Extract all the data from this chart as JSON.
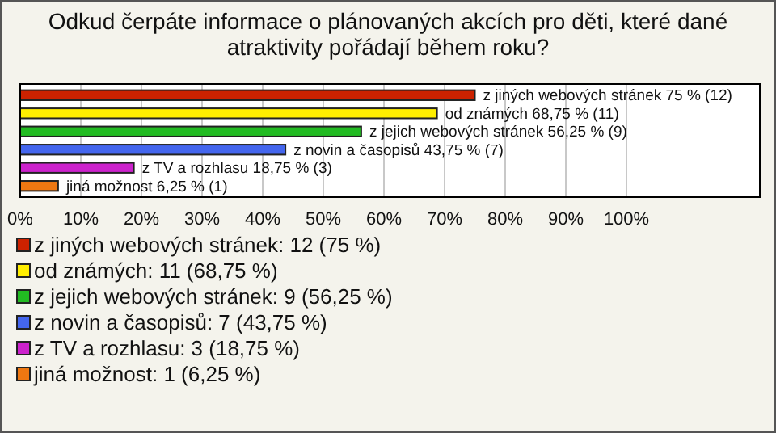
{
  "chart_data": {
    "type": "bar",
    "orientation": "horizontal",
    "title": "Odkud čerpáte informace o plánovaných akcích pro děti, které dané atraktivity pořádají během roku?",
    "categories": [
      null,
      null,
      null,
      null,
      null,
      null
    ],
    "series": [
      {
        "name": "z jiných webových stránek: 12 (75 %)",
        "color": "#cc2200",
        "values": [
          75,
          null,
          null,
          null,
          null,
          null
        ],
        "value_labels": [
          "z jiných webových stránek 75 % (12)",
          null,
          null,
          null,
          null,
          null
        ]
      },
      {
        "name": "od známých: 11 (68,75 %)",
        "color": "#ffee00",
        "values": [
          null,
          68.75,
          null,
          null,
          null,
          null
        ],
        "value_labels": [
          null,
          "od známých 68,75 % (11)",
          null,
          null,
          null,
          null
        ]
      },
      {
        "name": "z jejich webových stránek: 9 (56,25 %)",
        "color": "#22bb22",
        "values": [
          null,
          null,
          56.25,
          null,
          null,
          null
        ],
        "value_labels": [
          null,
          null,
          "z jejich webových stránek 56,25 % (9)",
          null,
          null,
          null
        ]
      },
      {
        "name": "z novin a časopisů: 7 (43,75 %)",
        "color": "#4466ee",
        "values": [
          null,
          null,
          null,
          43.75,
          null,
          null
        ],
        "value_labels": [
          null,
          null,
          null,
          "z novin a časopisů 43,75 % (7)",
          null,
          null
        ]
      },
      {
        "name": "z TV a rozhlasu: 3 (18,75 %)",
        "color": "#cc22cc",
        "values": [
          null,
          null,
          null,
          null,
          18.75,
          null
        ],
        "value_labels": [
          null,
          null,
          null,
          null,
          "z TV a rozhlasu 18,75 % (3)",
          null
        ]
      },
      {
        "name": "jiná možnost: 1 (6,25 %)",
        "color": "#ee7711",
        "values": [
          null,
          null,
          null,
          null,
          null,
          6.25
        ],
        "value_labels": [
          null,
          null,
          null,
          null,
          null,
          "jiná možnost 6,25 % (1)"
        ]
      }
    ],
    "xlim": [
      0,
      122
    ],
    "xticks": [
      {
        "value": 0,
        "label": "0%"
      },
      {
        "value": 10,
        "label": "10%"
      },
      {
        "value": 20,
        "label": "20%"
      },
      {
        "value": 30,
        "label": "30%"
      },
      {
        "value": 40,
        "label": "40%"
      },
      {
        "value": 50,
        "label": "50%"
      },
      {
        "value": 60,
        "label": "60%"
      },
      {
        "value": 70,
        "label": "70%"
      },
      {
        "value": 80,
        "label": "80%"
      },
      {
        "value": 90,
        "label": "90%"
      },
      {
        "value": 100,
        "label": "100%"
      }
    ],
    "tick_labels": "x",
    "grid": "x",
    "legend": "bottom"
  }
}
